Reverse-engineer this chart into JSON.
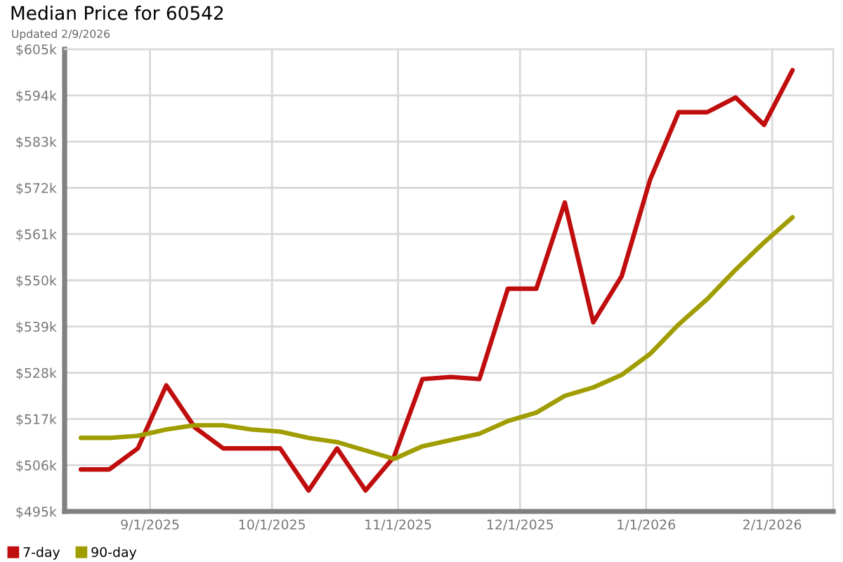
{
  "chart_data": {
    "type": "line",
    "title": "Median Price for 60542",
    "subtitle": "Updated 2/9/2026",
    "x": [
      "2025-08-15",
      "2025-08-22",
      "2025-08-29",
      "2025-09-05",
      "2025-09-12",
      "2025-09-19",
      "2025-09-26",
      "2025-10-03",
      "2025-10-10",
      "2025-10-17",
      "2025-10-24",
      "2025-10-31",
      "2025-11-07",
      "2025-11-14",
      "2025-11-21",
      "2025-11-28",
      "2025-12-05",
      "2025-12-12",
      "2025-12-19",
      "2025-12-26",
      "2026-01-02",
      "2026-01-09",
      "2026-01-16",
      "2026-01-23",
      "2026-01-30",
      "2026-02-06"
    ],
    "series": [
      {
        "name": "7-day",
        "color": "#c00d0d",
        "values": [
          505,
          505,
          510,
          525,
          515,
          510,
          510,
          510,
          500,
          510,
          500,
          508,
          526.5,
          527,
          526.5,
          548,
          548,
          568.5,
          540,
          551,
          574,
          590,
          590,
          593.5,
          587,
          600
        ]
      },
      {
        "name": "90-day",
        "color": "#a09d00",
        "values": [
          512.5,
          512.5,
          513,
          514.5,
          515.5,
          515.5,
          514.5,
          514,
          512.5,
          511.5,
          509.5,
          507.5,
          510.5,
          512,
          513.5,
          516.5,
          518.5,
          522.5,
          524.5,
          527.5,
          532.5,
          539.5,
          545.5,
          552.5,
          559,
          565
        ]
      }
    ],
    "xlim": [
      "2025-08-11",
      "2026-02-16"
    ],
    "xticks": [
      {
        "value": "2025-09-01",
        "label": "9/1/2025"
      },
      {
        "value": "2025-10-01",
        "label": "10/1/2025"
      },
      {
        "value": "2025-11-01",
        "label": "11/1/2025"
      },
      {
        "value": "2025-12-01",
        "label": "12/1/2025"
      },
      {
        "value": "2026-01-01",
        "label": "1/1/2026"
      },
      {
        "value": "2026-02-01",
        "label": "2/1/2026"
      }
    ],
    "ylim": [
      495,
      605
    ],
    "yticks": [
      {
        "value": 495,
        "label": "$495k"
      },
      {
        "value": 506,
        "label": "$506k"
      },
      {
        "value": 517,
        "label": "$517k"
      },
      {
        "value": 528,
        "label": "$528k"
      },
      {
        "value": 539,
        "label": "$539k"
      },
      {
        "value": 550,
        "label": "$550k"
      },
      {
        "value": 561,
        "label": "$561k"
      },
      {
        "value": 572,
        "label": "$572k"
      },
      {
        "value": 583,
        "label": "$583k"
      },
      {
        "value": 594,
        "label": "$594k"
      },
      {
        "value": 605,
        "label": "$605k"
      }
    ],
    "grid": true,
    "legend": "bottom left",
    "marker": "none",
    "line_style": "solid"
  }
}
